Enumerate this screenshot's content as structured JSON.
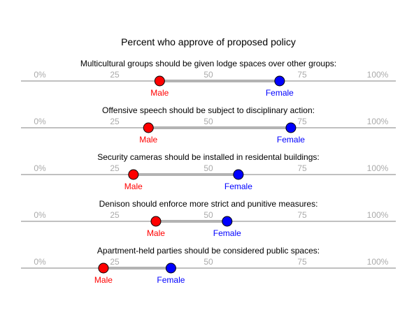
{
  "chart_data": {
    "type": "dumbbell",
    "title": "Percent who approve of proposed policy",
    "xlim": [
      0,
      100
    ],
    "ticks": [
      {
        "value": 0,
        "label": "0%"
      },
      {
        "value": 25,
        "label": "25"
      },
      {
        "value": 50,
        "label": "50"
      },
      {
        "value": 75,
        "label": "75"
      },
      {
        "value": 100,
        "label": "100%"
      }
    ],
    "series": [
      {
        "name": "Male",
        "color": "#ff0000"
      },
      {
        "name": "Female",
        "color": "#0000ff"
      }
    ],
    "connector_color": "#b3b3b3",
    "axis_color": "#808080",
    "questions": [
      {
        "label": "Multicultural groups should be given lodge spaces over other groups:",
        "values": [
          37,
          69
        ]
      },
      {
        "label": "Offensive speech should be subject to disciplinary action:",
        "values": [
          34,
          72
        ]
      },
      {
        "label": "Security cameras should be installed in residental buildings:",
        "values": [
          30,
          58
        ]
      },
      {
        "label": "Denison should enforce more strict and punitive measures:",
        "values": [
          36,
          55
        ]
      },
      {
        "label": "Apartment-held parties should be considered public spaces:",
        "values": [
          22,
          40
        ]
      }
    ]
  }
}
